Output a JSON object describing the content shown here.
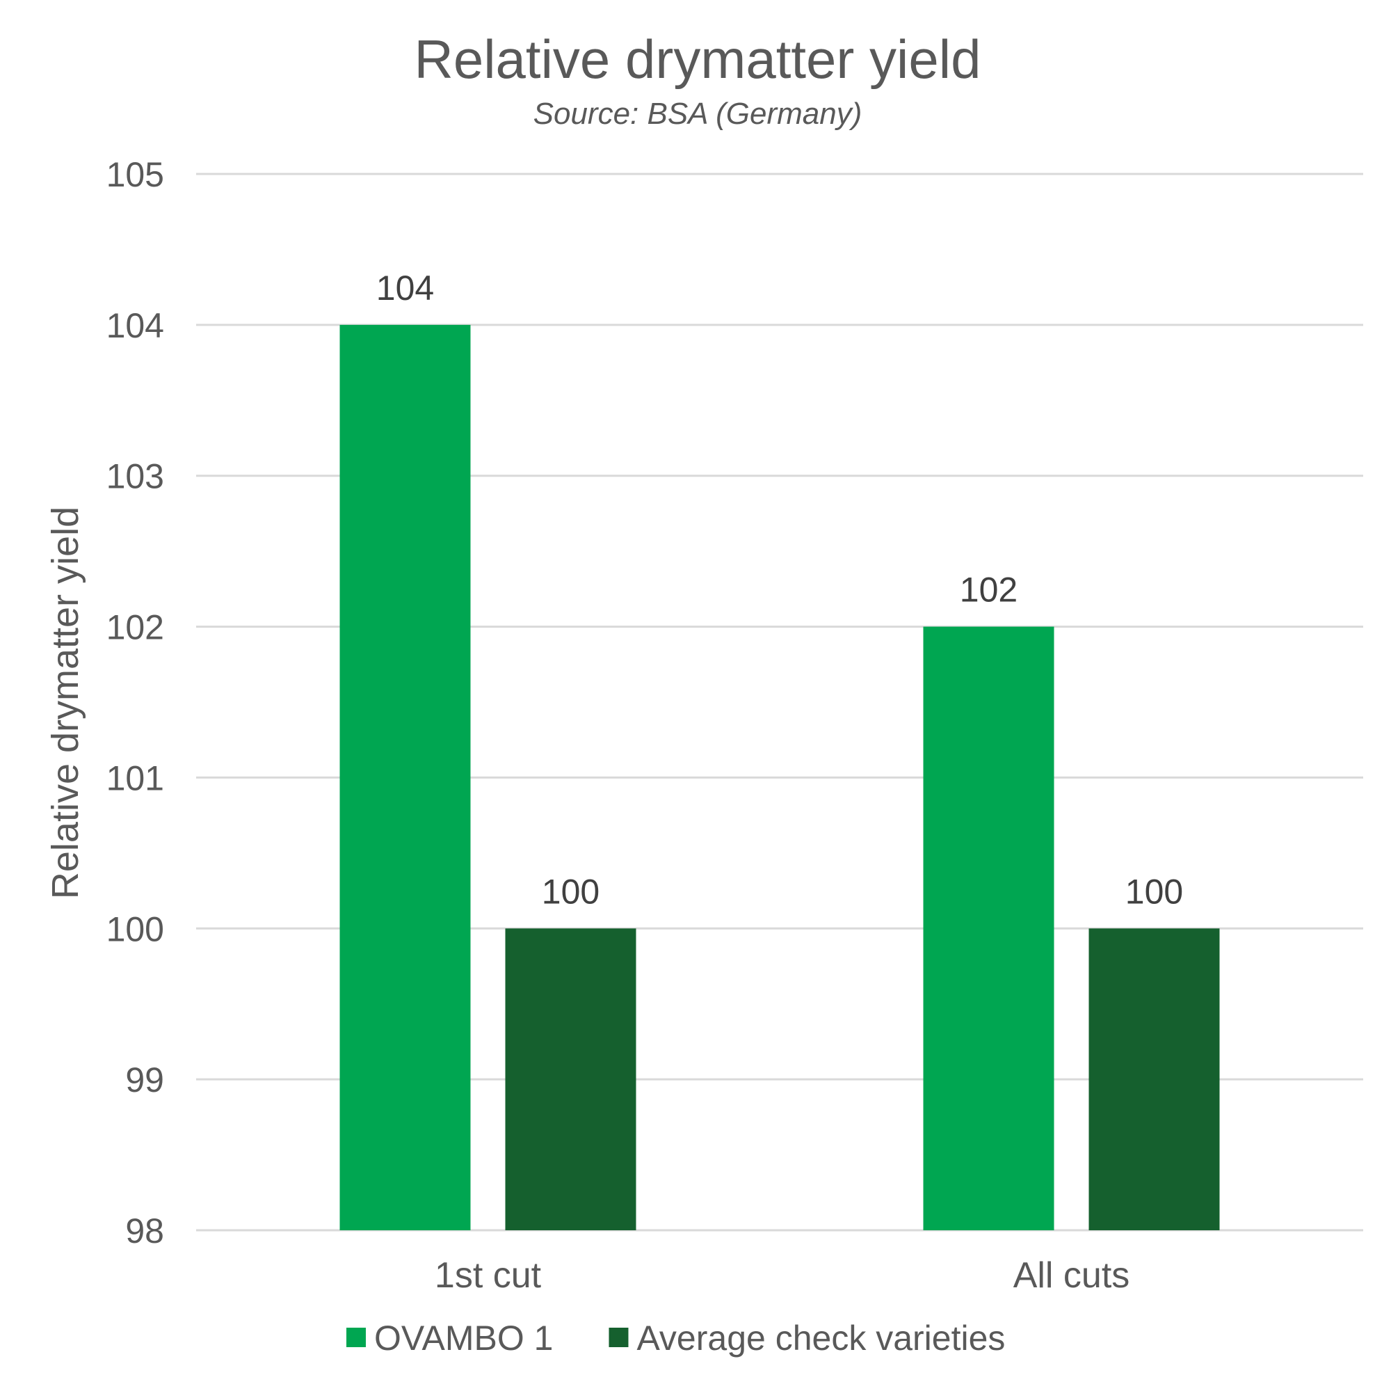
{
  "chart_data": {
    "type": "bar",
    "title": "Relative drymatter yield",
    "subtitle": "Source: BSA (Germany)",
    "xlabel": "",
    "ylabel": "Relative drymatter yield",
    "categories": [
      "1st cut",
      "All cuts"
    ],
    "series": [
      {
        "name": "OVAMBO 1",
        "values": [
          104,
          102
        ],
        "color": "#00a651"
      },
      {
        "name": "Average check varieties",
        "values": [
          100,
          100
        ],
        "color": "#15602e"
      }
    ],
    "ylim": [
      98,
      105
    ],
    "yticks": [
      98,
      99,
      100,
      101,
      102,
      103,
      104,
      105
    ],
    "grid": true,
    "legend_position": "bottom",
    "data_labels": true
  }
}
